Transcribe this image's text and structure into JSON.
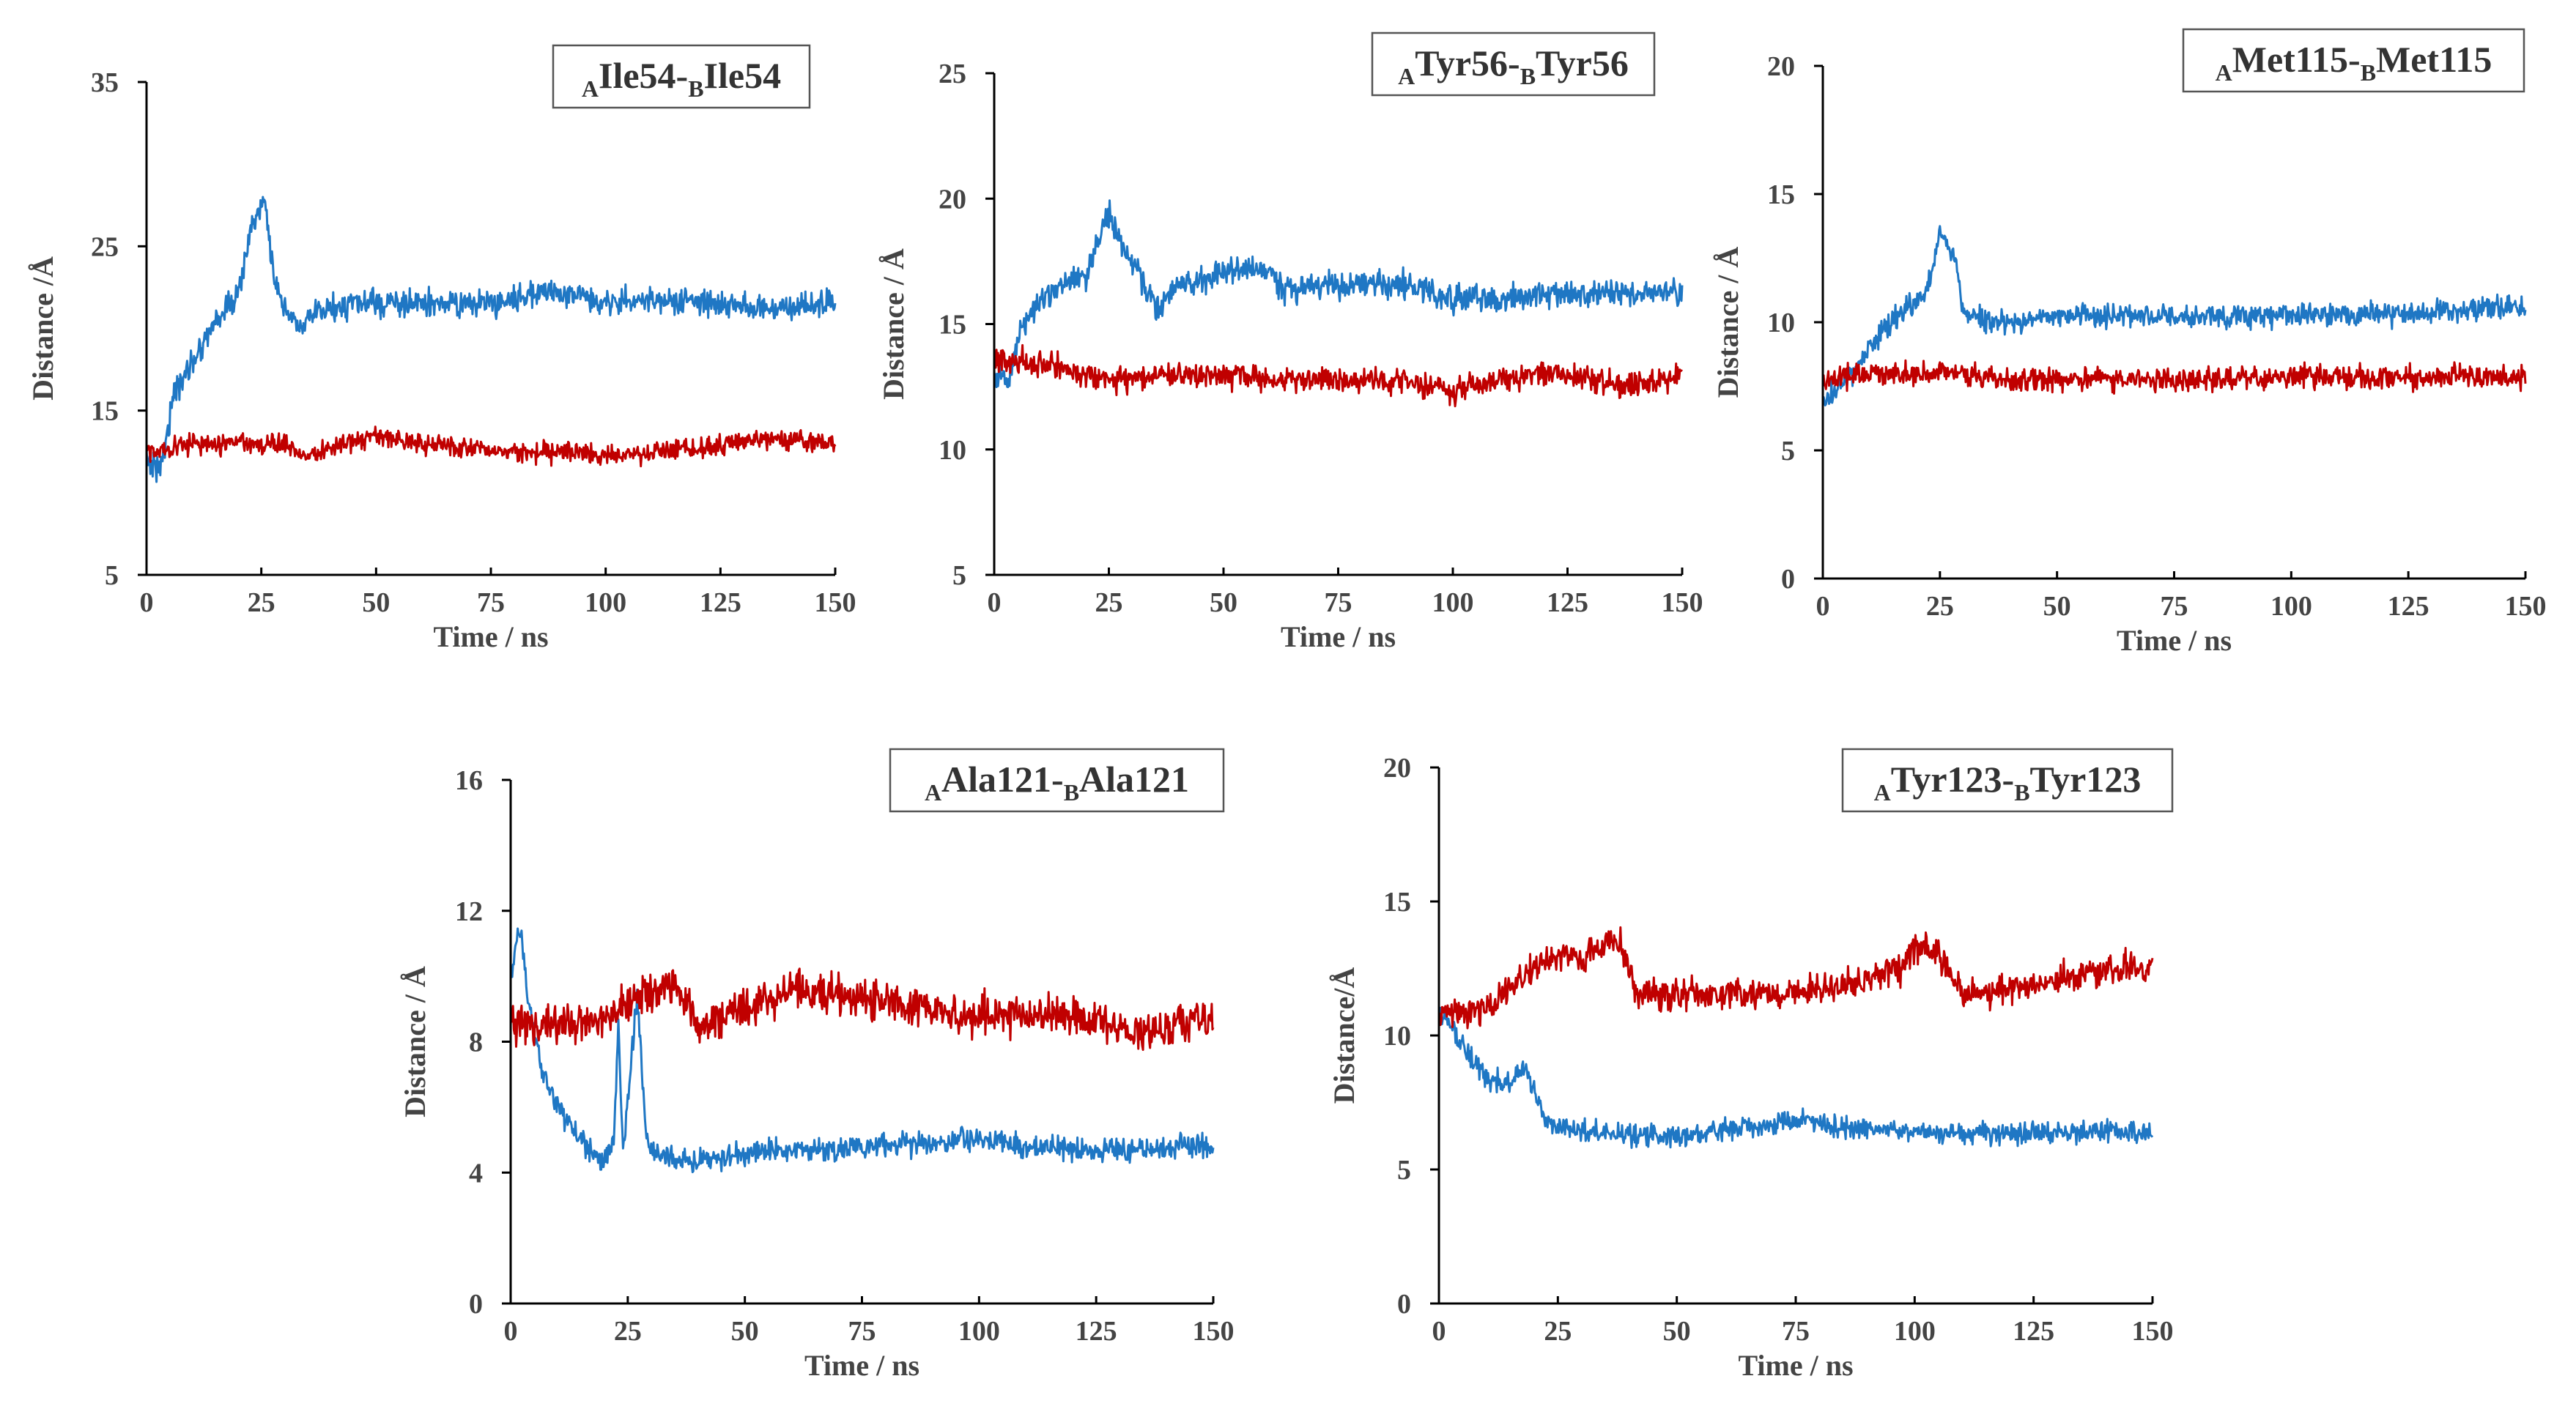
{
  "chart_data": [
    {
      "type": "line",
      "title": {
        "chainA": "A",
        "resA": "Ile54-",
        "chainB": "B",
        "resB": "Ile54"
      },
      "xlabel": "Time / ns",
      "ylabel": "Distance /Å",
      "xlim": [
        0,
        150
      ],
      "ylim": [
        5,
        35
      ],
      "xticks": [
        0,
        25,
        50,
        75,
        100,
        125,
        150
      ],
      "yticks": [
        5,
        15,
        25,
        35
      ],
      "series": [
        {
          "name": "blue",
          "color": "#1f77c4",
          "noise": 0.8,
          "points": [
            [
              0,
              12
            ],
            [
              3,
              11.5
            ],
            [
              6,
              16
            ],
            [
              10,
              18
            ],
            [
              15,
              20.5
            ],
            [
              20,
              22
            ],
            [
              23,
              26.5
            ],
            [
              26,
              27.5
            ],
            [
              28,
              22.5
            ],
            [
              30,
              21
            ],
            [
              34,
              20
            ],
            [
              37,
              21
            ],
            [
              45,
              21.5
            ],
            [
              60,
              21.5
            ],
            [
              75,
              21.5
            ],
            [
              87,
              22.3
            ],
            [
              100,
              21.7
            ],
            [
              120,
              21.6
            ],
            [
              135,
              21.2
            ],
            [
              150,
              21.5
            ]
          ]
        },
        {
          "name": "red",
          "color": "#c00000",
          "noise": 0.6,
          "points": [
            [
              0,
              12.5
            ],
            [
              10,
              13
            ],
            [
              20,
              13
            ],
            [
              30,
              13
            ],
            [
              35,
              12.2
            ],
            [
              40,
              12.8
            ],
            [
              50,
              13.5
            ],
            [
              60,
              13
            ],
            [
              75,
              12.5
            ],
            [
              90,
              12.5
            ],
            [
              100,
              12.2
            ],
            [
              120,
              12.7
            ],
            [
              135,
              13.3
            ],
            [
              150,
              13
            ]
          ]
        }
      ]
    },
    {
      "type": "line",
      "title": {
        "chainA": "A",
        "resA": "Tyr56-",
        "chainB": "B",
        "resB": "Tyr56"
      },
      "xlabel": "Time / ns",
      "ylabel": "Distance / Å",
      "xlim": [
        0,
        150
      ],
      "ylim": [
        5,
        25
      ],
      "xticks": [
        0,
        25,
        50,
        75,
        100,
        125,
        150
      ],
      "yticks": [
        5,
        10,
        15,
        20,
        25
      ],
      "series": [
        {
          "name": "blue",
          "color": "#1f77c4",
          "noise": 0.55,
          "points": [
            [
              0,
              13
            ],
            [
              3,
              12.5
            ],
            [
              6,
              15
            ],
            [
              10,
              16
            ],
            [
              15,
              16.5
            ],
            [
              20,
              17
            ],
            [
              25,
              19.5
            ],
            [
              28,
              18
            ],
            [
              32,
              17
            ],
            [
              36,
              15.5
            ],
            [
              40,
              16.5
            ],
            [
              50,
              17
            ],
            [
              60,
              17.2
            ],
            [
              62,
              16.5
            ],
            [
              75,
              16.5
            ],
            [
              90,
              16.6
            ],
            [
              100,
              16
            ],
            [
              110,
              16
            ],
            [
              125,
              16.2
            ],
            [
              140,
              16.3
            ],
            [
              150,
              16.2
            ]
          ]
        },
        {
          "name": "red",
          "color": "#c00000",
          "noise": 0.5,
          "points": [
            [
              0,
              13.5
            ],
            [
              10,
              13.5
            ],
            [
              20,
              13
            ],
            [
              30,
              12.8
            ],
            [
              40,
              13
            ],
            [
              50,
              13
            ],
            [
              60,
              12.8
            ],
            [
              75,
              12.8
            ],
            [
              90,
              12.7
            ],
            [
              100,
              12.3
            ],
            [
              110,
              12.8
            ],
            [
              120,
              13
            ],
            [
              130,
              12.8
            ],
            [
              140,
              12.5
            ],
            [
              150,
              13
            ]
          ]
        }
      ]
    },
    {
      "type": "line",
      "title": {
        "chainA": "A",
        "resA": "Met115-",
        "chainB": "B",
        "resB": "Met115"
      },
      "xlabel": "Time / ns",
      "ylabel": "Distance / Å",
      "xlim": [
        0,
        150
      ],
      "ylim": [
        0,
        20
      ],
      "xticks": [
        0,
        25,
        50,
        75,
        100,
        125,
        150
      ],
      "yticks": [
        0,
        5,
        10,
        15,
        20
      ],
      "series": [
        {
          "name": "blue",
          "color": "#1f77c4",
          "noise": 0.45,
          "points": [
            [
              0,
              7
            ],
            [
              4,
              7.5
            ],
            [
              8,
              8.5
            ],
            [
              12,
              9.5
            ],
            [
              18,
              10.5
            ],
            [
              22,
              11
            ],
            [
              25,
              13.5
            ],
            [
              28,
              12.5
            ],
            [
              30,
              10.5
            ],
            [
              35,
              10
            ],
            [
              40,
              10
            ],
            [
              50,
              10.3
            ],
            [
              75,
              10.2
            ],
            [
              100,
              10.3
            ],
            [
              125,
              10.3
            ],
            [
              140,
              10.5
            ],
            [
              150,
              10.5
            ]
          ]
        },
        {
          "name": "red",
          "color": "#c00000",
          "noise": 0.45,
          "points": [
            [
              0,
              7.8
            ],
            [
              10,
              8
            ],
            [
              25,
              8
            ],
            [
              40,
              7.8
            ],
            [
              60,
              7.8
            ],
            [
              75,
              7.7
            ],
            [
              100,
              7.9
            ],
            [
              125,
              7.8
            ],
            [
              150,
              7.9
            ]
          ]
        }
      ]
    },
    {
      "type": "line",
      "title": {
        "chainA": "A",
        "resA": "Ala121-",
        "chainB": "B",
        "resB": "Ala121"
      },
      "xlabel": "Time / ns",
      "ylabel": "Distance / Å",
      "xlim": [
        0,
        150
      ],
      "ylim": [
        0,
        16
      ],
      "xticks": [
        0,
        25,
        50,
        75,
        100,
        125,
        150
      ],
      "yticks": [
        0,
        4,
        8,
        12,
        16
      ],
      "series": [
        {
          "name": "blue",
          "color": "#1f77c4",
          "noise": 0.35,
          "points": [
            [
              0,
              10
            ],
            [
              2,
              11.5
            ],
            [
              4,
              9
            ],
            [
              7,
              7
            ],
            [
              10,
              6
            ],
            [
              15,
              5
            ],
            [
              20,
              4.3
            ],
            [
              22,
              5
            ],
            [
              23,
              8.5
            ],
            [
              24,
              4.5
            ],
            [
              27,
              9.5
            ],
            [
              29,
              5
            ],
            [
              32,
              4.5
            ],
            [
              40,
              4.3
            ],
            [
              50,
              4.6
            ],
            [
              75,
              4.8
            ],
            [
              100,
              5
            ],
            [
              110,
              4.8
            ],
            [
              125,
              4.7
            ],
            [
              150,
              4.8
            ]
          ]
        },
        {
          "name": "red",
          "color": "#c00000",
          "noise": 0.6,
          "points": [
            [
              0,
              8.5
            ],
            [
              10,
              8.5
            ],
            [
              20,
              8.8
            ],
            [
              30,
              9.5
            ],
            [
              35,
              9.8
            ],
            [
              40,
              8.5
            ],
            [
              50,
              9
            ],
            [
              60,
              9.5
            ],
            [
              75,
              9.3
            ],
            [
              90,
              9
            ],
            [
              100,
              8.8
            ],
            [
              120,
              8.8
            ],
            [
              125,
              8.5
            ],
            [
              135,
              8.3
            ],
            [
              150,
              8.7
            ]
          ]
        }
      ]
    },
    {
      "type": "line",
      "title": {
        "chainA": "A",
        "resA": "Tyr123-",
        "chainB": "B",
        "resB": "Tyr123"
      },
      "xlabel": "Time / ns",
      "ylabel": "Distance/Å",
      "xlim": [
        0,
        150
      ],
      "ylim": [
        0,
        20
      ],
      "xticks": [
        0,
        25,
        50,
        75,
        100,
        125,
        150
      ],
      "yticks": [
        0,
        5,
        10,
        15,
        20
      ],
      "series": [
        {
          "name": "blue",
          "color": "#1f77c4",
          "noise": 0.4,
          "points": [
            [
              0,
              11
            ],
            [
              5,
              9.5
            ],
            [
              10,
              8.5
            ],
            [
              15,
              8.2
            ],
            [
              18,
              8.8
            ],
            [
              20,
              8
            ],
            [
              22,
              7
            ],
            [
              25,
              6.5
            ],
            [
              30,
              6.5
            ],
            [
              40,
              6.3
            ],
            [
              50,
              6.2
            ],
            [
              60,
              6.5
            ],
            [
              75,
              6.8
            ],
            [
              90,
              6.5
            ],
            [
              100,
              6.4
            ],
            [
              125,
              6.3
            ],
            [
              140,
              6.5
            ],
            [
              150,
              6.3
            ]
          ]
        },
        {
          "name": "red",
          "color": "#c00000",
          "noise": 0.55,
          "points": [
            [
              0,
              10.8
            ],
            [
              10,
              11
            ],
            [
              20,
              12.5
            ],
            [
              25,
              13
            ],
            [
              30,
              12.8
            ],
            [
              35,
              13.5
            ],
            [
              38,
              13.5
            ],
            [
              42,
              11.5
            ],
            [
              50,
              11.5
            ],
            [
              60,
              11.5
            ],
            [
              75,
              11.7
            ],
            [
              90,
              12
            ],
            [
              97,
              12.5
            ],
            [
              100,
              13.2
            ],
            [
              105,
              13
            ],
            [
              110,
              11.5
            ],
            [
              125,
              11.8
            ],
            [
              140,
              12.5
            ],
            [
              150,
              12.5
            ]
          ]
        }
      ]
    }
  ]
}
